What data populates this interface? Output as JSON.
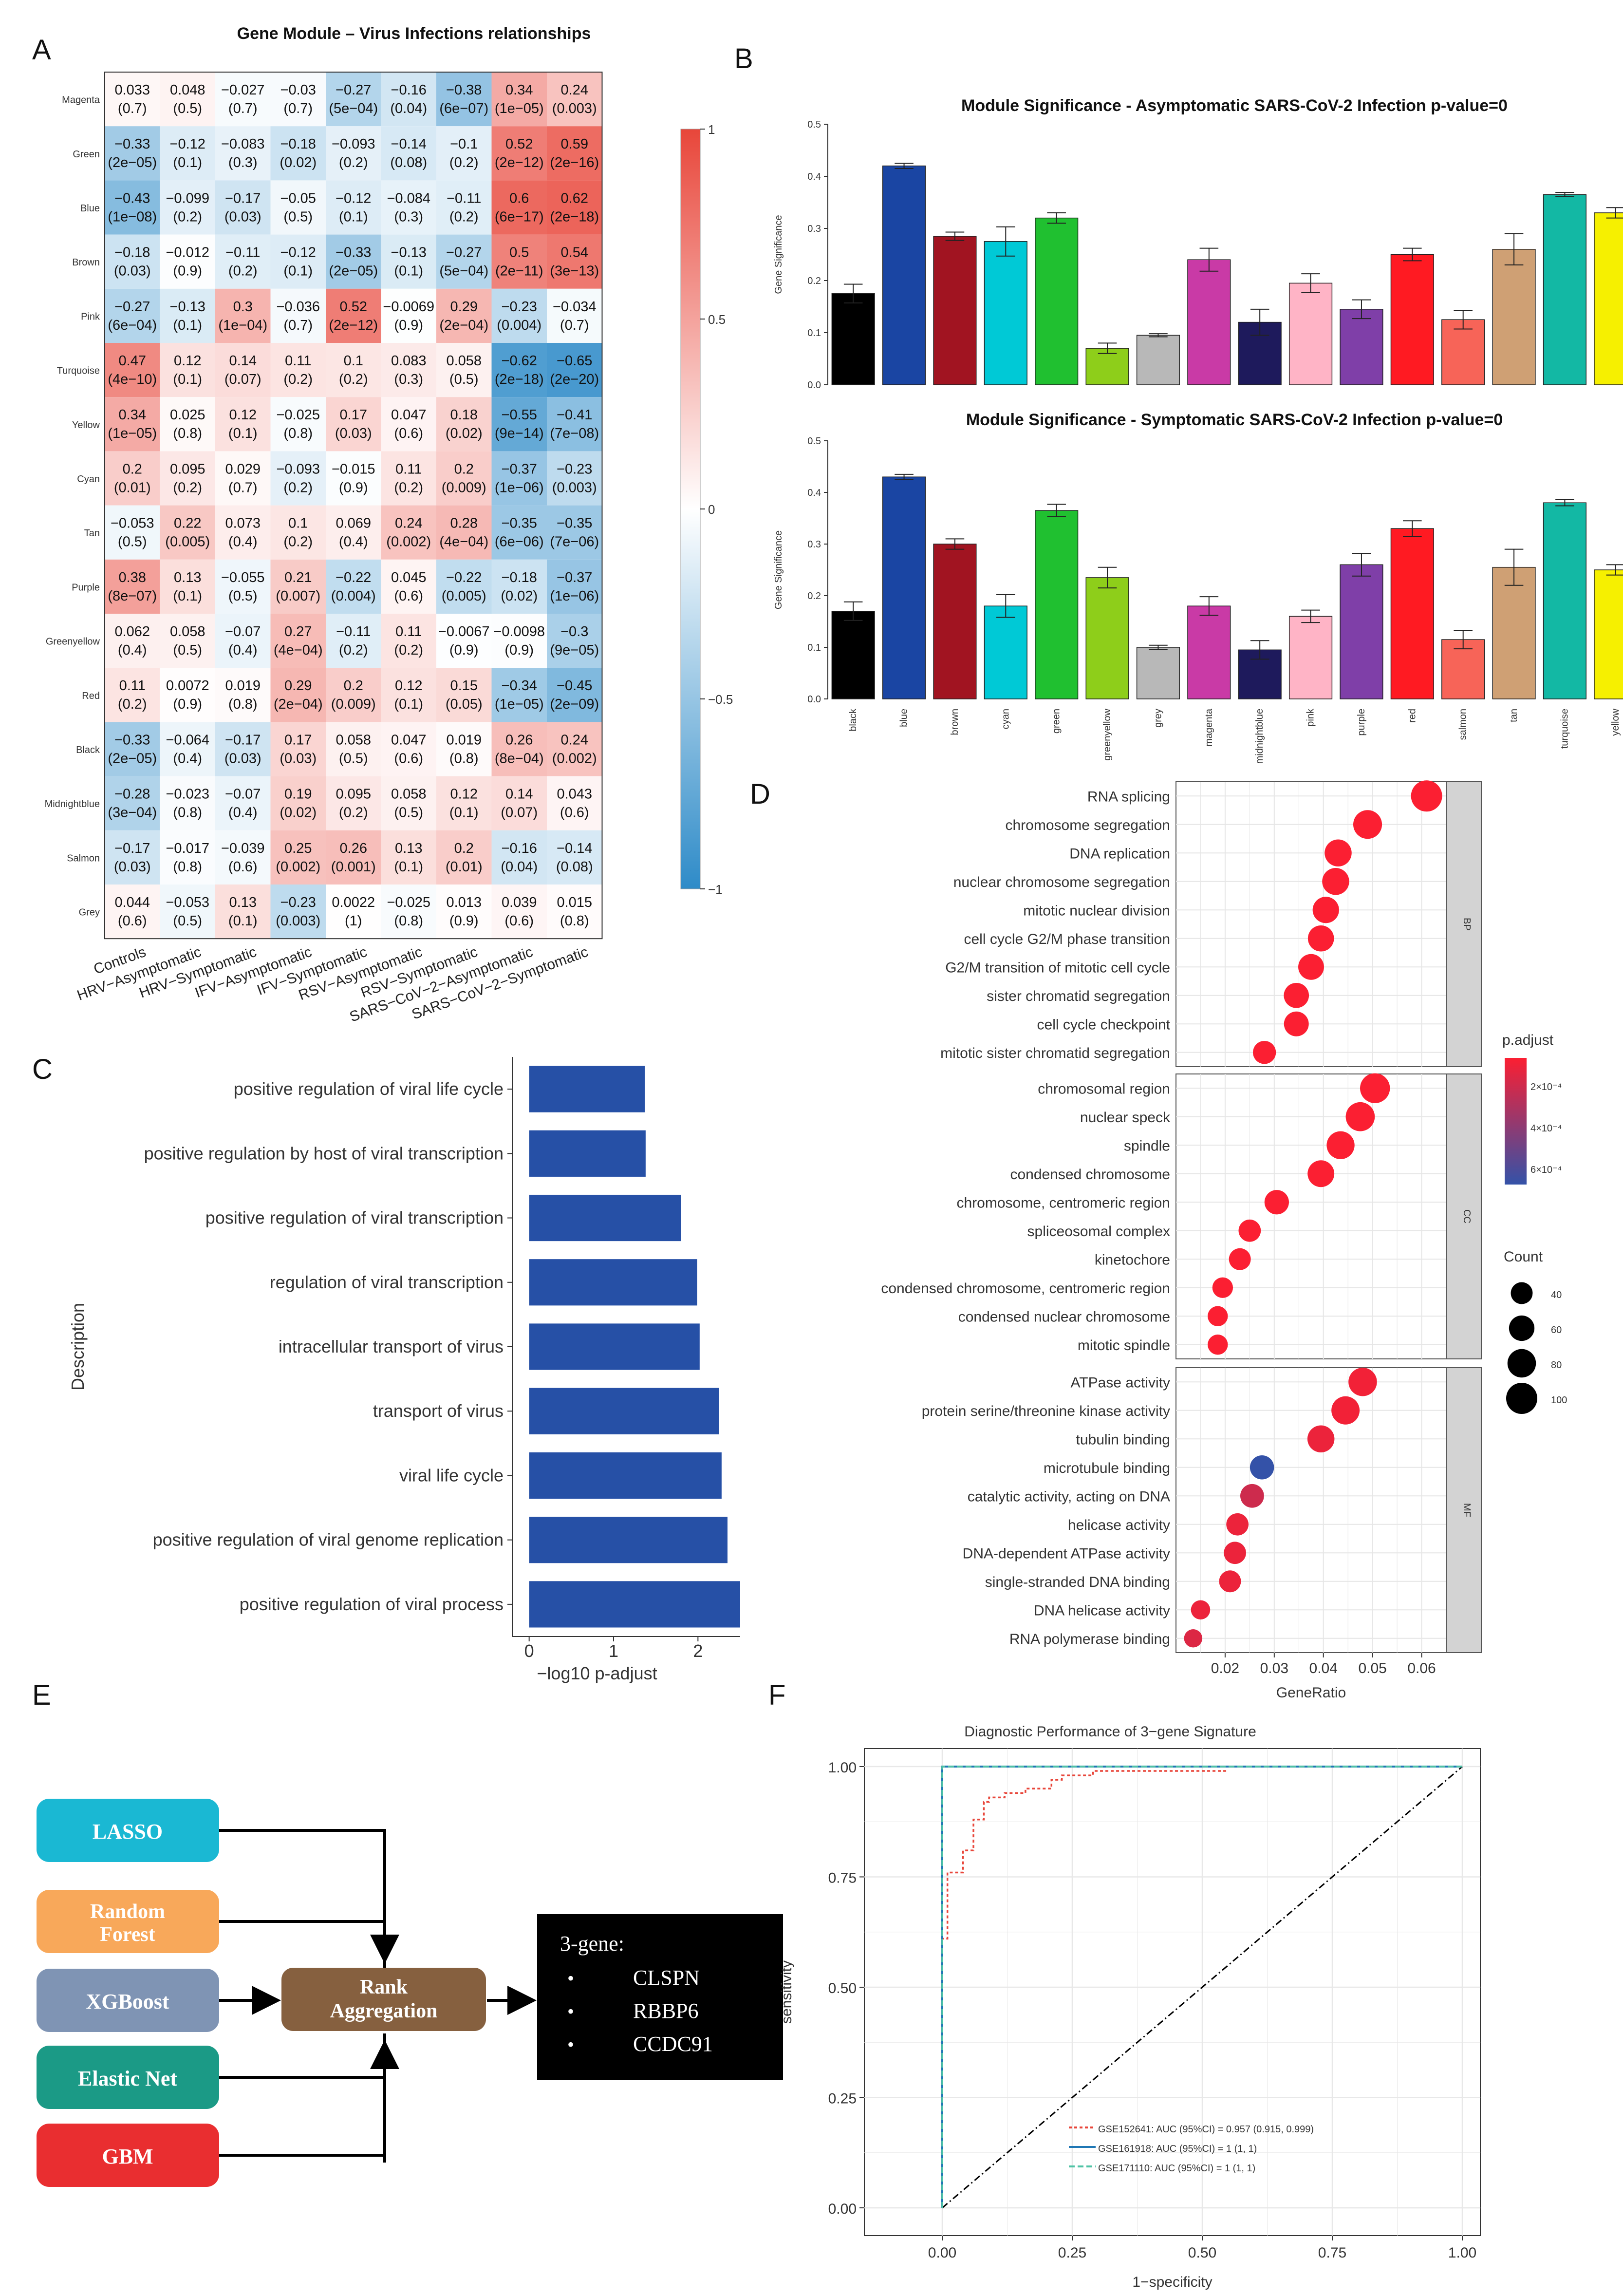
{
  "panels": {
    "A": "A",
    "B": "B",
    "C": "C",
    "D": "D",
    "E": "E",
    "F": "F"
  },
  "colors": {
    "negative": "#2e8bc8",
    "neutral": "#ffffff",
    "positive": "#e8463a",
    "bar_fill_C": "#2650a6",
    "dot_high": "#fb1f32",
    "dot_low": "#3452a8"
  },
  "panel_a": {
    "title": "Gene Module – Virus Infections relationships",
    "rows": [
      "Magenta",
      "Green",
      "Blue",
      "Brown",
      "Pink",
      "Turquoise",
      "Yellow",
      "Cyan",
      "Tan",
      "Purple",
      "Greenyellow",
      "Red",
      "Black",
      "Midnightblue",
      "Salmon",
      "Grey"
    ],
    "columns": [
      "Controls",
      "HRV−Asymptomatic",
      "HRV−Symptomatic",
      "IFV−Asymptomatic",
      "IFV−Symptomatic",
      "RSV−Asymptomatic",
      "RSV−Symptomatic",
      "SARS−CoV−2−Asymptomatic",
      "SARS−CoV−2−Symptomatic"
    ],
    "values": [
      [
        0.033,
        0.048,
        -0.027,
        -0.03,
        -0.27,
        -0.16,
        -0.38,
        0.34,
        0.24
      ],
      [
        -0.33,
        -0.12,
        -0.083,
        -0.18,
        -0.093,
        -0.14,
        -0.1,
        0.52,
        0.59
      ],
      [
        -0.43,
        -0.099,
        -0.17,
        -0.05,
        -0.12,
        -0.084,
        -0.11,
        0.6,
        0.62
      ],
      [
        -0.18,
        -0.012,
        -0.11,
        -0.12,
        -0.33,
        -0.13,
        -0.27,
        0.5,
        0.54
      ],
      [
        -0.27,
        -0.13,
        0.3,
        -0.036,
        0.52,
        -0.0069,
        0.29,
        -0.23,
        -0.034
      ],
      [
        0.47,
        0.12,
        0.14,
        0.11,
        0.1,
        0.083,
        0.058,
        -0.62,
        -0.65
      ],
      [
        0.34,
        0.025,
        0.12,
        -0.025,
        0.17,
        0.047,
        0.18,
        -0.55,
        -0.41
      ],
      [
        0.2,
        0.095,
        0.029,
        -0.093,
        -0.015,
        0.11,
        0.2,
        -0.37,
        -0.23
      ],
      [
        -0.053,
        0.22,
        0.073,
        0.1,
        0.069,
        0.24,
        0.28,
        -0.35,
        -0.35
      ],
      [
        0.38,
        0.13,
        -0.055,
        0.21,
        -0.22,
        0.045,
        -0.22,
        -0.18,
        -0.37
      ],
      [
        0.062,
        0.058,
        -0.07,
        0.27,
        -0.11,
        0.11,
        -0.0067,
        -0.0098,
        -0.3
      ],
      [
        0.11,
        0.0072,
        0.019,
        0.29,
        0.2,
        0.12,
        0.15,
        -0.34,
        -0.45
      ],
      [
        -0.33,
        -0.064,
        -0.17,
        0.17,
        0.058,
        0.047,
        0.019,
        0.26,
        0.24
      ],
      [
        -0.28,
        -0.023,
        -0.07,
        0.19,
        0.095,
        0.058,
        0.12,
        0.14,
        0.043
      ],
      [
        -0.17,
        -0.017,
        -0.039,
        0.25,
        0.26,
        0.13,
        0.2,
        -0.16,
        -0.14
      ],
      [
        0.044,
        -0.053,
        0.13,
        -0.23,
        0.0022,
        -0.025,
        0.013,
        0.039,
        0.015
      ]
    ],
    "labels": [
      [
        "0.033",
        "0.048",
        "−0.027",
        "−0.03",
        "−0.27",
        "−0.16",
        "−0.38",
        "0.34",
        "0.24"
      ],
      [
        "−0.33",
        "−0.12",
        "−0.083",
        "−0.18",
        "−0.093",
        "−0.14",
        "−0.1",
        "0.52",
        "0.59"
      ],
      [
        "−0.43",
        "−0.099",
        "−0.17",
        "−0.05",
        "−0.12",
        "−0.084",
        "−0.11",
        "0.6",
        "0.62"
      ],
      [
        "−0.18",
        "−0.012",
        "−0.11",
        "−0.12",
        "−0.33",
        "−0.13",
        "−0.27",
        "0.5",
        "0.54"
      ],
      [
        "−0.27",
        "−0.13",
        "0.3",
        "−0.036",
        "0.52",
        "−0.0069",
        "0.29",
        "−0.23",
        "−0.034"
      ],
      [
        "0.47",
        "0.12",
        "0.14",
        "0.11",
        "0.1",
        "0.083",
        "0.058",
        "−0.62",
        "−0.65"
      ],
      [
        "0.34",
        "0.025",
        "0.12",
        "−0.025",
        "0.17",
        "0.047",
        "0.18",
        "−0.55",
        "−0.41"
      ],
      [
        "0.2",
        "0.095",
        "0.029",
        "−0.093",
        "−0.015",
        "0.11",
        "0.2",
        "−0.37",
        "−0.23"
      ],
      [
        "−0.053",
        "0.22",
        "0.073",
        "0.1",
        "0.069",
        "0.24",
        "0.28",
        "−0.35",
        "−0.35"
      ],
      [
        "0.38",
        "0.13",
        "−0.055",
        "0.21",
        "−0.22",
        "0.045",
        "−0.22",
        "−0.18",
        "−0.37"
      ],
      [
        "0.062",
        "0.058",
        "−0.07",
        "0.27",
        "−0.11",
        "0.11",
        "−0.0067",
        "−0.0098",
        "−0.3"
      ],
      [
        "0.11",
        "0.0072",
        "0.019",
        "0.29",
        "0.2",
        "0.12",
        "0.15",
        "−0.34",
        "−0.45"
      ],
      [
        "−0.33",
        "−0.064",
        "−0.17",
        "0.17",
        "0.058",
        "0.047",
        "0.019",
        "0.26",
        "0.24"
      ],
      [
        "−0.28",
        "−0.023",
        "−0.07",
        "0.19",
        "0.095",
        "0.058",
        "0.12",
        "0.14",
        "0.043"
      ],
      [
        "−0.17",
        "−0.017",
        "−0.039",
        "0.25",
        "0.26",
        "0.13",
        "0.2",
        "−0.16",
        "−0.14"
      ],
      [
        "0.044",
        "−0.053",
        "0.13",
        "−0.23",
        "0.0022",
        "−0.025",
        "0.013",
        "0.039",
        "0.015"
      ]
    ],
    "pvalues": [
      [
        "(0.7)",
        "(0.5)",
        "(0.7)",
        "(0.7)",
        "(5e−04)",
        "(0.04)",
        "(6e−07)",
        "(1e−05)",
        "(0.003)"
      ],
      [
        "(2e−05)",
        "(0.1)",
        "(0.3)",
        "(0.02)",
        "(0.2)",
        "(0.08)",
        "(0.2)",
        "(2e−12)",
        "(2e−16)"
      ],
      [
        "(1e−08)",
        "(0.2)",
        "(0.03)",
        "(0.5)",
        "(0.1)",
        "(0.3)",
        "(0.2)",
        "(6e−17)",
        "(2e−18)"
      ],
      [
        "(0.03)",
        "(0.9)",
        "(0.2)",
        "(0.1)",
        "(2e−05)",
        "(0.1)",
        "(5e−04)",
        "(2e−11)",
        "(3e−13)"
      ],
      [
        "(6e−04)",
        "(0.1)",
        "(1e−04)",
        "(0.7)",
        "(2e−12)",
        "(0.9)",
        "(2e−04)",
        "(0.004)",
        "(0.7)"
      ],
      [
        "(4e−10)",
        "(0.1)",
        "(0.07)",
        "(0.2)",
        "(0.2)",
        "(0.3)",
        "(0.5)",
        "(2e−18)",
        "(2e−20)"
      ],
      [
        "(1e−05)",
        "(0.8)",
        "(0.1)",
        "(0.8)",
        "(0.03)",
        "(0.6)",
        "(0.02)",
        "(9e−14)",
        "(7e−08)"
      ],
      [
        "(0.01)",
        "(0.2)",
        "(0.7)",
        "(0.2)",
        "(0.9)",
        "(0.2)",
        "(0.009)",
        "(1e−06)",
        "(0.003)"
      ],
      [
        "(0.5)",
        "(0.005)",
        "(0.4)",
        "(0.2)",
        "(0.4)",
        "(0.002)",
        "(4e−04)",
        "(6e−06)",
        "(7e−06)"
      ],
      [
        "(8e−07)",
        "(0.1)",
        "(0.5)",
        "(0.007)",
        "(0.004)",
        "(0.6)",
        "(0.005)",
        "(0.02)",
        "(1e−06)"
      ],
      [
        "(0.4)",
        "(0.5)",
        "(0.4)",
        "(4e−04)",
        "(0.2)",
        "(0.2)",
        "(0.9)",
        "(0.9)",
        "(9e−05)"
      ],
      [
        "(0.2)",
        "(0.9)",
        "(0.8)",
        "(2e−04)",
        "(0.009)",
        "(0.1)",
        "(0.05)",
        "(1e−05)",
        "(2e−09)"
      ],
      [
        "(2e−05)",
        "(0.4)",
        "(0.03)",
        "(0.03)",
        "(0.5)",
        "(0.6)",
        "(0.8)",
        "(8e−04)",
        "(0.002)"
      ],
      [
        "(3e−04)",
        "(0.8)",
        "(0.4)",
        "(0.02)",
        "(0.2)",
        "(0.5)",
        "(0.1)",
        "(0.07)",
        "(0.6)"
      ],
      [
        "(0.03)",
        "(0.8)",
        "(0.6)",
        "(0.002)",
        "(0.001)",
        "(0.1)",
        "(0.01)",
        "(0.04)",
        "(0.08)"
      ],
      [
        "(0.6)",
        "(0.5)",
        "(0.1)",
        "(0.003)",
        "(1)",
        "(0.8)",
        "(0.9)",
        "(0.6)",
        "(0.8)"
      ]
    ],
    "colorbar_ticks": [
      "1",
      "0.5",
      "0",
      "−0.5",
      "−1"
    ]
  },
  "chart_data": [
    {
      "type": "bar",
      "title": "Module Significance - Asymptomatic SARS-CoV-2 Infection p-value=0",
      "ylabel": "Gene Significance",
      "ylim": [
        0,
        0.5
      ],
      "yticks": [
        "0.0",
        "0.1",
        "0.2",
        "0.3",
        "0.4",
        "0.5"
      ],
      "categories": [
        "black",
        "blue",
        "brown",
        "cyan",
        "green",
        "greenyellow",
        "grey",
        "magenta",
        "midnightblue",
        "pink",
        "purple",
        "red",
        "salmon",
        "tan",
        "turquoise",
        "yellow"
      ],
      "colors": [
        "#000000",
        "#1a45a3",
        "#a11421",
        "#00c9d6",
        "#20c030",
        "#8ece1a",
        "#b8b8b8",
        "#c93aa6",
        "#1e1a5c",
        "#ffb4c6",
        "#7f3fa8",
        "#ff1a22",
        "#f76458",
        "#cfa074",
        "#13b8a4",
        "#f6f000"
      ],
      "values": [
        0.175,
        0.42,
        0.285,
        0.275,
        0.32,
        0.07,
        0.095,
        0.24,
        0.12,
        0.195,
        0.145,
        0.25,
        0.125,
        0.26,
        0.365,
        0.33
      ],
      "errors": [
        0.018,
        0.005,
        0.008,
        0.028,
        0.01,
        0.01,
        0.003,
        0.022,
        0.025,
        0.018,
        0.018,
        0.012,
        0.018,
        0.03,
        0.004,
        0.01
      ]
    },
    {
      "type": "bar",
      "title": "Module Significance - Symptomatic SARS-CoV-2 Infection p-value=0",
      "ylabel": "Gene Significance",
      "ylim": [
        0,
        0.5
      ],
      "yticks": [
        "0.0",
        "0.1",
        "0.2",
        "0.3",
        "0.4",
        "0.5"
      ],
      "categories": [
        "black",
        "blue",
        "brown",
        "cyan",
        "green",
        "greenyellow",
        "grey",
        "magenta",
        "midnightblue",
        "pink",
        "purple",
        "red",
        "salmon",
        "tan",
        "turquoise",
        "yellow"
      ],
      "colors": [
        "#000000",
        "#1a45a3",
        "#a11421",
        "#00c9d6",
        "#20c030",
        "#8ece1a",
        "#b8b8b8",
        "#c93aa6",
        "#1e1a5c",
        "#ffb4c6",
        "#7f3fa8",
        "#ff1a22",
        "#f76458",
        "#cfa074",
        "#13b8a4",
        "#f6f000"
      ],
      "values": [
        0.17,
        0.43,
        0.3,
        0.18,
        0.365,
        0.235,
        0.1,
        0.18,
        0.095,
        0.16,
        0.26,
        0.33,
        0.115,
        0.255,
        0.38,
        0.25
      ],
      "errors": [
        0.018,
        0.005,
        0.01,
        0.022,
        0.012,
        0.02,
        0.004,
        0.018,
        0.018,
        0.012,
        0.022,
        0.015,
        0.018,
        0.035,
        0.006,
        0.01
      ]
    },
    {
      "type": "bar",
      "orientation": "horizontal",
      "xlabel": "−log10 p-adjust",
      "ylabel": "Description",
      "xlim": [
        -0.2,
        2.5
      ],
      "xticks": [
        "0",
        "1",
        "2"
      ],
      "categories": [
        "positive regulation of viral life cycle",
        "positive regulation by host of viral transcription",
        "positive regulation of viral transcription",
        "regulation of viral transcription",
        "intracellular transport of virus",
        "transport of virus",
        "viral life cycle",
        "positive regulation of viral genome replication",
        "positive regulation of viral process"
      ],
      "values": [
        1.37,
        1.38,
        1.8,
        1.99,
        2.02,
        2.25,
        2.28,
        2.35,
        2.5
      ]
    },
    {
      "type": "scatter",
      "xlabel": "GeneRatio",
      "xlim": [
        0.01,
        0.065
      ],
      "xticks": [
        "0.02",
        "0.03",
        "0.04",
        "0.05",
        "0.06"
      ],
      "legend_padjust_title": "p.adjust",
      "legend_padjust_ticks": [
        "2×10⁻⁴",
        "4×10⁻⁴",
        "6×10⁻⁴"
      ],
      "legend_count_title": "Count",
      "legend_count_ticks": [
        "40",
        "60",
        "80",
        "100"
      ],
      "facets": [
        {
          "name": "BP",
          "terms": [
            "RNA splicing",
            "chromosome segregation",
            "DNA replication",
            "nuclear chromosome segregation",
            "mitotic nuclear division",
            "cell cycle G2/M phase transition",
            "G2/M transition of mitotic cell cycle",
            "sister chromatid segregation",
            "cell cycle checkpoint",
            "mitotic sister chromatid segregation"
          ],
          "x": [
            0.061,
            0.049,
            0.043,
            0.0425,
            0.0405,
            0.0395,
            0.0375,
            0.0345,
            0.0345,
            0.028
          ],
          "count": [
            100,
            82,
            70,
            70,
            66,
            64,
            62,
            58,
            56,
            46
          ],
          "padj": [
            5e-05,
            5e-05,
            5e-05,
            5e-05,
            5e-05,
            5e-05,
            5e-05,
            5e-05,
            5e-05,
            5e-05
          ]
        },
        {
          "name": "CC",
          "terms": [
            "chromosomal region",
            "nuclear speck",
            "spindle",
            "condensed chromosome",
            "chromosome, centromeric region",
            "spliceosomal complex",
            "kinetochore",
            "condensed chromosome, centromeric region",
            "condensed nuclear chromosome",
            "mitotic spindle"
          ],
          "x": [
            0.0505,
            0.0475,
            0.0435,
            0.0395,
            0.0305,
            0.025,
            0.023,
            0.0195,
            0.0185,
            0.0185
          ],
          "count": [
            90,
            84,
            76,
            68,
            54,
            42,
            40,
            34,
            32,
            32
          ],
          "padj": [
            5e-05,
            5e-05,
            5e-05,
            5e-05,
            5e-05,
            5e-05,
            5e-05,
            5e-05,
            5e-05,
            5e-05
          ]
        },
        {
          "name": "MF",
          "terms": [
            "ATPase activity",
            "protein serine/threonine kinase activity",
            "tubulin binding",
            "microtubule binding",
            "catalytic activity, acting on DNA",
            "helicase activity",
            "DNA-dependent ATPase activity",
            "single-stranded DNA binding",
            "DNA helicase activity",
            "RNA polymerase binding"
          ],
          "x": [
            0.048,
            0.0445,
            0.0395,
            0.0275,
            0.0255,
            0.0225,
            0.022,
            0.021,
            0.015,
            0.0135
          ],
          "count": [
            80,
            78,
            70,
            52,
            50,
            42,
            42,
            40,
            28,
            24
          ],
          "padj": [
            8e-05,
            8e-05,
            0.0001,
            0.0007,
            0.0002,
            0.0001,
            0.0001,
            0.0001,
            0.0001,
            0.00015
          ]
        }
      ]
    },
    {
      "type": "line",
      "title": "Diagnostic Performance of 3−gene Signature",
      "xlabel": "1−specificity",
      "ylabel": "sensitivity",
      "xlim": [
        0,
        1
      ],
      "ylim": [
        0,
        1
      ],
      "xticks": [
        "0.00",
        "0.25",
        "0.50",
        "0.75",
        "1.00"
      ],
      "yticks": [
        "0.00",
        "0.25",
        "0.50",
        "0.75",
        "1.00"
      ],
      "series": [
        {
          "name": "GSE152641: AUC (95%CI) = 0.957 (0.915, 0.999)",
          "color": "#e8463a",
          "x": [
            0,
            0,
            0.01,
            0.01,
            0.04,
            0.04,
            0.06,
            0.06,
            0.08,
            0.08,
            0.09,
            0.09,
            0.12,
            0.12,
            0.16,
            0.16,
            0.21,
            0.21,
            0.23,
            0.23,
            0.29,
            0.29,
            0.55
          ],
          "y": [
            0,
            0.61,
            0.61,
            0.76,
            0.76,
            0.81,
            0.81,
            0.88,
            0.88,
            0.92,
            0.92,
            0.93,
            0.93,
            0.94,
            0.94,
            0.95,
            0.95,
            0.97,
            0.97,
            0.98,
            0.98,
            0.99,
            0.99
          ]
        },
        {
          "name": "GSE161918: AUC (95%CI) = 1 (1, 1)",
          "color": "#1f77b4",
          "x": [
            0,
            0,
            1
          ],
          "y": [
            0,
            1,
            1
          ]
        },
        {
          "name": "GSE171110: AUC (95%CI) = 1 (1, 1)",
          "color": "#4fc3a5",
          "x": [
            0,
            0,
            1
          ],
          "y": [
            0,
            1,
            1
          ]
        }
      ]
    }
  ],
  "panel_e": {
    "methods": [
      "LASSO",
      "Random Forest",
      "XGBoost",
      "Elastic Net",
      "GBM"
    ],
    "method_colors": [
      "#1ab8d3",
      "#f8a85a",
      "#7f94b4",
      "#1b9a86",
      "#e92e30"
    ],
    "aggregation": "Rank Aggregation",
    "aggregation_color": "#86603f",
    "signature_title": "3-gene:",
    "genes": [
      "CLSPN",
      "RBBP6",
      "CCDC91"
    ],
    "bullet": "•"
  }
}
